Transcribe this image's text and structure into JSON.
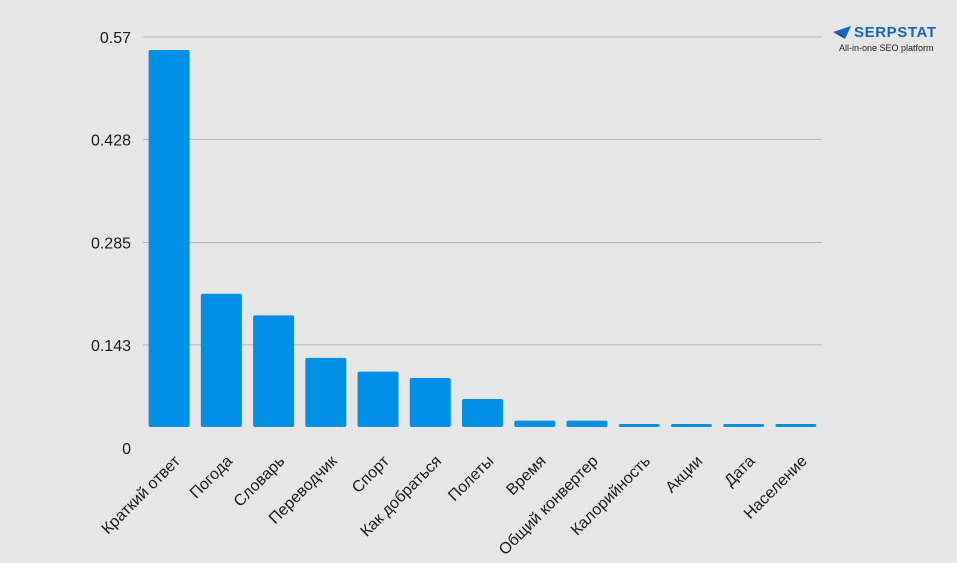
{
  "brand": {
    "name": "SERPSTAT",
    "tagline": "All-in-one SEO platform",
    "color": "#1565c0",
    "icon": "serpstat-logo-mark-icon"
  },
  "colors": {
    "background": "#e6e6e6",
    "bar": "#0090e8",
    "grid": "#b5b5b5",
    "text": "#1a1a1a"
  },
  "chart_data": {
    "type": "bar",
    "categories": [
      "Краткий ответ",
      "Погода",
      "Словарь",
      "Переводчик",
      "Спорт",
      "Как добраться",
      "Полеты",
      "Время",
      "Общий конвертер",
      "Калорийность",
      "Акции",
      "Дата",
      "Население"
    ],
    "values": [
      0.552,
      0.214,
      0.184,
      0.125,
      0.106,
      0.097,
      0.068,
      0.038,
      0.038,
      0.019,
      0.019,
      0.01,
      0.01
    ],
    "yticks": [
      "0",
      "0.143",
      "0.285",
      "0.428",
      "0.57"
    ],
    "ylim": [
      0,
      0.57
    ],
    "xlabel": "",
    "ylabel": "",
    "title": "",
    "grid": true,
    "legend": "none",
    "baseline_offset": -0.03
  }
}
